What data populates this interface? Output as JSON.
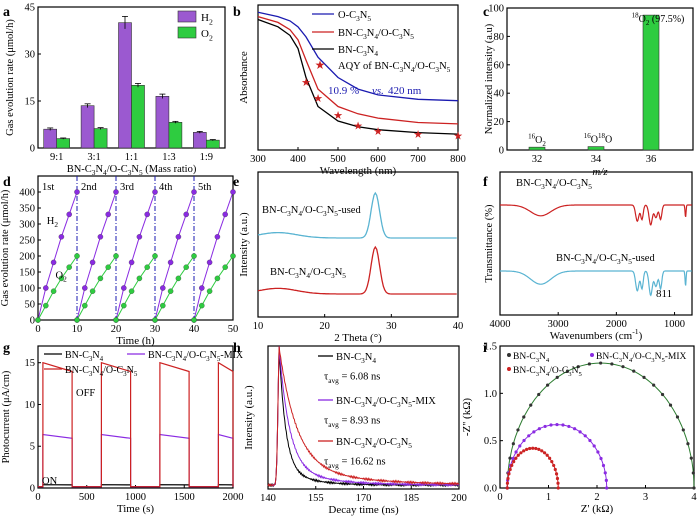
{
  "colors": {
    "purple": "#9b59d0",
    "green": "#2ecc40",
    "red": "#cc2222",
    "blue": "#1a1ab0",
    "black": "#000000",
    "cyan": "#5ab4d2",
    "violet": "#8a2be2"
  },
  "chart_data": [
    {
      "panel": "a",
      "type": "bar",
      "categories": [
        "9:1",
        "3:1",
        "1:1",
        "1:3",
        "1:9"
      ],
      "series": [
        {
          "name": "H2",
          "values": [
            6.0,
            13.5,
            40.0,
            16.5,
            5.0
          ]
        },
        {
          "name": "O2",
          "values": [
            3.0,
            6.2,
            20.0,
            8.2,
            2.5
          ]
        }
      ],
      "errors": [
        [
          0.4,
          0.6,
          2.0,
          0.7,
          0.3
        ],
        [
          0.2,
          0.3,
          0.6,
          0.3,
          0.2
        ]
      ],
      "xlabel": "BN-C3N4/O-C3N5 (Mass ratio)",
      "ylabel": "Gas evolution rate (μmol/h)",
      "ylim": [
        0,
        45
      ],
      "yticks": [
        "0",
        "15",
        "30",
        "45"
      ],
      "legend": [
        "H2",
        "O2"
      ]
    },
    {
      "panel": "b",
      "type": "line",
      "xlim": [
        300,
        800
      ],
      "xticks": [
        "300",
        "400",
        "500",
        "600",
        "700",
        "800"
      ],
      "xlabel": "Wavelength (nm)",
      "ylabel": "Absorbance",
      "series": [
        {
          "name": "O-C3N5",
          "x": [
            300,
            350,
            380,
            400,
            420,
            450,
            500,
            550,
            600,
            700,
            800
          ],
          "y": [
            0.95,
            0.92,
            0.89,
            0.85,
            0.78,
            0.64,
            0.5,
            0.42,
            0.38,
            0.35,
            0.34
          ]
        },
        {
          "name": "BN-C3N4/O-C3N5",
          "x": [
            300,
            350,
            380,
            400,
            420,
            450,
            500,
            550,
            600,
            700,
            800
          ],
          "y": [
            0.92,
            0.88,
            0.83,
            0.76,
            0.62,
            0.42,
            0.3,
            0.25,
            0.22,
            0.19,
            0.18
          ]
        },
        {
          "name": "BN-C3N4",
          "x": [
            300,
            350,
            380,
            400,
            420,
            450,
            500,
            550,
            600,
            700,
            800
          ],
          "y": [
            0.9,
            0.85,
            0.79,
            0.7,
            0.5,
            0.3,
            0.2,
            0.16,
            0.14,
            0.12,
            0.11
          ]
        }
      ],
      "aqy_points": {
        "name": "AQY of BN-C3N4/O-C3N5",
        "x": [
          420,
          450,
          500,
          550,
          600,
          700,
          800
        ],
        "y": [
          0.47,
          0.36,
          0.24,
          0.17,
          0.13,
          0.11,
          0.1
        ]
      },
      "annotation": "10.9 % vs. 420 nm"
    },
    {
      "panel": "c",
      "type": "bar",
      "categories": [
        "32",
        "34",
        "36"
      ],
      "tick_labels": [
        "32",
        "34",
        "36"
      ],
      "values": [
        2.0,
        2.4,
        95.0
      ],
      "bar_labels": [
        "16O2",
        "16O18O",
        "18O2 (97.5%)"
      ],
      "xlabel": "m/z",
      "ylabel": "Normalized intensity (a.u)",
      "ylim": [
        0,
        100
      ],
      "yticks": [
        "0",
        "20",
        "40",
        "60",
        "80",
        "100"
      ]
    },
    {
      "panel": "d",
      "type": "scatter",
      "xlim": [
        0,
        50
      ],
      "ylim": [
        0,
        450
      ],
      "xticks": [
        "0",
        "10",
        "20",
        "30",
        "40",
        "50"
      ],
      "yticks": [
        "0",
        "50",
        "100",
        "150",
        "200",
        "250",
        "300",
        "350",
        "400"
      ],
      "xlabel": "Time (h)",
      "ylabel": "Gas evolution rate (μmol/h)",
      "cycle_labels": [
        "1st",
        "2nd",
        "3rd",
        "4th",
        "5th"
      ],
      "cycle_boundaries": [
        10,
        20,
        30,
        40
      ],
      "series": [
        {
          "name": "H2",
          "points_per_cycle": [
            [
              0,
              0
            ],
            [
              2,
              100
            ],
            [
              4,
              180
            ],
            [
              6,
              260
            ],
            [
              8,
              330
            ],
            [
              10,
              400
            ]
          ]
        },
        {
          "name": "O2",
          "points_per_cycle": [
            [
              0,
              0
            ],
            [
              2,
              45
            ],
            [
              4,
              90
            ],
            [
              6,
              130
            ],
            [
              8,
              165
            ],
            [
              10,
              200
            ]
          ]
        }
      ],
      "series_labels": [
        "H2",
        "O2"
      ]
    },
    {
      "panel": "e",
      "type": "line",
      "xlim": [
        10,
        40
      ],
      "xticks": [
        "10",
        "20",
        "30",
        "40"
      ],
      "xlabel": "2 Theta (°)",
      "ylabel": "Intensity (a.u.)",
      "series": [
        {
          "name": "BN-C3N4/O-C3N5-used",
          "peak_x": 27.6
        },
        {
          "name": "BN-C3N4/O-C3N5",
          "peak_x": 27.6
        }
      ]
    },
    {
      "panel": "f",
      "type": "line",
      "xlim": [
        4000,
        700
      ],
      "xticks": [
        "4000",
        "3000",
        "2000",
        "1000"
      ],
      "xlabel": "Wavenumbers (cm-1)",
      "ylabel": "Transmittance (%)",
      "series": [
        {
          "name": "BN-C3N4/O-C3N5"
        },
        {
          "name": "BN-C3N4/O-C3N5-used"
        }
      ],
      "annotation": "811"
    },
    {
      "panel": "g",
      "type": "line",
      "xlim": [
        0,
        2000
      ],
      "ylim": [
        0,
        17
      ],
      "xticks": [
        "0",
        "500",
        "1000",
        "1500",
        "2000"
      ],
      "yticks": [
        "0",
        "5",
        "10",
        "15"
      ],
      "xlabel": "Time (s)",
      "ylabel": "Photocurrent (μA/cm)",
      "series": [
        {
          "name": "BN-C3N4",
          "on_level": 0.4
        },
        {
          "name": "BN-C3N4/O-C3N5-MIX",
          "on_level": 6.4
        },
        {
          "name": "BN-C3N4/O-C3N5",
          "on_level": 15.0
        }
      ],
      "on_intervals": [
        [
          50,
          350
        ],
        [
          650,
          950
        ],
        [
          1250,
          1550
        ],
        [
          1850,
          2000
        ]
      ],
      "annotations": [
        "OFF",
        "ON"
      ]
    },
    {
      "panel": "h",
      "type": "line",
      "xlim": [
        140,
        200
      ],
      "xticks": [
        "140",
        "155",
        "170",
        "185",
        "200"
      ],
      "xlabel": "Decay time (ns)",
      "ylabel": "Intensity (a.u.)",
      "series": [
        {
          "name": "BN-C3N4",
          "tau_avg": "6.08 ns"
        },
        {
          "name": "BN-C3N4/O-C3N5-MIX",
          "tau_avg": "8.93 ns"
        },
        {
          "name": "BN-C3N4/O-C3N5",
          "tau_avg": "16.62 ns"
        }
      ]
    },
    {
      "panel": "i",
      "type": "scatter",
      "xlim": [
        0,
        4
      ],
      "ylim": [
        0,
        1.5
      ],
      "xticks": [
        "0",
        "1",
        "2",
        "3",
        "4"
      ],
      "yticks": [
        "0.0",
        "0.5",
        "1.0",
        "1.5"
      ],
      "xlabel": "Z' (kΩ)",
      "ylabel": "-Z'' (kΩ)",
      "series": [
        {
          "name": "BN-C3N4",
          "x_end": 4.0,
          "peak": 1.32
        },
        {
          "name": "BN-C3N4/O-C3N5-MIX",
          "x_end": 2.2,
          "peak": 0.67
        },
        {
          "name": "BN-C3N4/O-C3N5",
          "x_end": 1.2,
          "peak": 0.42
        }
      ]
    }
  ]
}
